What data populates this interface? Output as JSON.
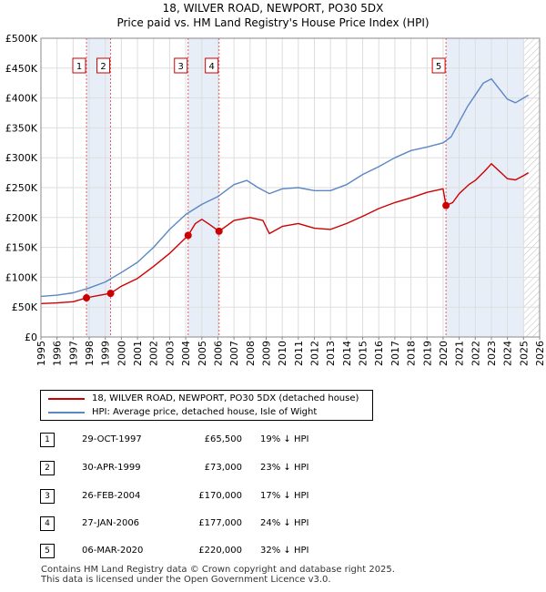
{
  "chart_data": {
    "type": "line",
    "title": "18, WILVER ROAD, NEWPORT, PO30 5DX",
    "subtitle": "Price paid vs. HM Land Registry's House Price Index (HPI)",
    "xlim": [
      1995,
      2026
    ],
    "ylim": [
      0,
      500000
    ],
    "x_ticks": [
      "1995",
      "1996",
      "1997",
      "1998",
      "1999",
      "2000",
      "2001",
      "2002",
      "2003",
      "2004",
      "2005",
      "2006",
      "2007",
      "2008",
      "2009",
      "2010",
      "2011",
      "2012",
      "2013",
      "2014",
      "2015",
      "2016",
      "2017",
      "2018",
      "2019",
      "2020",
      "2021",
      "2022",
      "2023",
      "2024",
      "2025",
      "2026"
    ],
    "y_ticks": [
      {
        "value": 0,
        "label": "£0"
      },
      {
        "value": 50000,
        "label": "£50K"
      },
      {
        "value": 100000,
        "label": "£100K"
      },
      {
        "value": 150000,
        "label": "£150K"
      },
      {
        "value": 200000,
        "label": "£200K"
      },
      {
        "value": 250000,
        "label": "£250K"
      },
      {
        "value": 300000,
        "label": "£300K"
      },
      {
        "value": 350000,
        "label": "£350K"
      },
      {
        "value": 400000,
        "label": "£400K"
      },
      {
        "value": 450000,
        "label": "£450K"
      },
      {
        "value": 500000,
        "label": "£500K"
      }
    ],
    "grid": true,
    "series": [
      {
        "name": "18, WILVER ROAD, NEWPORT, PO30 5DX (detached house)",
        "color": "#cc0000",
        "x": [
          1995,
          1996,
          1997,
          1997.83,
          1998.5,
          1999.33,
          2000,
          2001,
          2002,
          2003,
          2004.15,
          2004.6,
          2005,
          2005.5,
          2006.07,
          2007,
          2008,
          2008.8,
          2009.2,
          2010,
          2011,
          2012,
          2013,
          2014,
          2015,
          2016,
          2017,
          2018,
          2019,
          2020.0,
          2020.18,
          2020.6,
          2021,
          2021.6,
          2022,
          2022.6,
          2023,
          2023.6,
          2024,
          2024.5,
          2025,
          2025.3
        ],
        "y": [
          56000,
          57000,
          59000,
          65500,
          69000,
          73000,
          85000,
          98000,
          118000,
          140000,
          170000,
          190000,
          197000,
          188000,
          177000,
          195000,
          200000,
          195000,
          173000,
          185000,
          190000,
          182000,
          180000,
          190000,
          202000,
          215000,
          225000,
          233000,
          242000,
          248000,
          220000,
          225000,
          240000,
          255000,
          262000,
          278000,
          290000,
          275000,
          265000,
          263000,
          270000,
          275000
        ]
      },
      {
        "name": "HPI: Average price, detached house, Isle of Wight",
        "color": "#5b87c5",
        "x": [
          1995,
          1996,
          1997,
          1998,
          1999,
          2000,
          2001,
          2002,
          2003,
          2004,
          2005,
          2006,
          2007,
          2007.8,
          2008.5,
          2009.2,
          2010,
          2011,
          2012,
          2013,
          2014,
          2015,
          2016,
          2017,
          2018,
          2019,
          2020,
          2020.5,
          2021,
          2021.5,
          2022,
          2022.5,
          2023,
          2023.5,
          2024,
          2024.5,
          2025,
          2025.3
        ],
        "y": [
          68000,
          70000,
          74000,
          82000,
          92000,
          108000,
          125000,
          150000,
          180000,
          205000,
          222000,
          235000,
          255000,
          262000,
          250000,
          240000,
          248000,
          250000,
          245000,
          245000,
          255000,
          272000,
          285000,
          300000,
          312000,
          318000,
          325000,
          335000,
          360000,
          385000,
          405000,
          425000,
          432000,
          415000,
          398000,
          392000,
          400000,
          405000
        ]
      }
    ],
    "sales": [
      {
        "n": "1",
        "x": 1997.83,
        "value": 65500
      },
      {
        "n": "2",
        "x": 1999.33,
        "value": 73000
      },
      {
        "n": "3",
        "x": 2004.15,
        "value": 170000
      },
      {
        "n": "4",
        "x": 2006.07,
        "value": 177000
      },
      {
        "n": "5",
        "x": 2020.18,
        "value": 220000
      }
    ],
    "hatched_from": 2025.0
  },
  "legend": {
    "property": "18, WILVER ROAD, NEWPORT, PO30 5DX (detached house)",
    "hpi": "HPI: Average price, detached house, Isle of Wight"
  },
  "table": [
    {
      "n": "1",
      "date": "29-OCT-1997",
      "price": "£65,500",
      "hpi": "19% ↓ HPI"
    },
    {
      "n": "2",
      "date": "30-APR-1999",
      "price": "£73,000",
      "hpi": "23% ↓ HPI"
    },
    {
      "n": "3",
      "date": "26-FEB-2004",
      "price": "£170,000",
      "hpi": "17% ↓ HPI"
    },
    {
      "n": "4",
      "date": "27-JAN-2006",
      "price": "£177,000",
      "hpi": "24% ↓ HPI"
    },
    {
      "n": "5",
      "date": "06-MAR-2020",
      "price": "£220,000",
      "hpi": "32% ↓ HPI"
    }
  ],
  "footer": {
    "line1": "Contains HM Land Registry data © Crown copyright and database right 2025.",
    "line2": "This data is licensed under the Open Government Licence v3.0."
  }
}
